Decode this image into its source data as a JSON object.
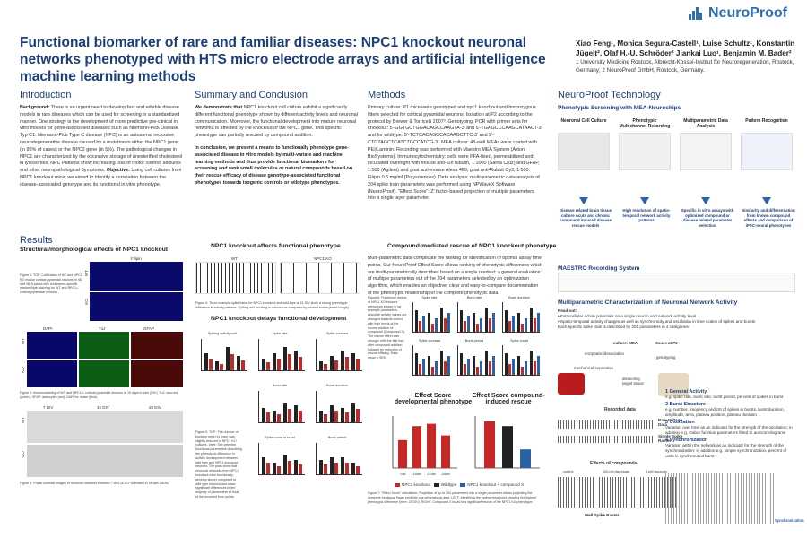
{
  "header": {
    "brand": "NeuroProof",
    "title": "Functional biomarker of rare and familiar diseases: NPC1 knockout neuronal networks phenotyped with HTS micro electrode arrays and artificial intelligence machine learning methods",
    "authors": "Xiao Feng¹, Monica Segura-Castell¹, Luise Schultz¹, Konstantin Jügelt², Olaf H.-U. Schröder² Jiankai Luo¹, Benjamin M. Bader²",
    "affiliations": "1 University Medicine Rostock, Albrecht-Kossel-Institut for Neuroregeneration, Rostock, Germany; 2 NeuroProof GmbH, Rostock, Germany."
  },
  "intro": {
    "heading": "Introduction",
    "bg_label": "Background:",
    "background": "There is an urgent need to develop fast and reliable disease models in rare diseases which can be used for screening in a standardized manner. One strategy is the development of more predictive pre-clinical in vitro models for gene-associated diseases such as Niemann-Pick Disease Typ C1. Niemann-Pick Type C disease (NPC) is an autosomal recessive neurodegenerative disease caused by a mutation in either the NPC1 gene (in 95% of cases) or the NPC2 gene (in 5%). The pathological changes in NPC1 are characterized by the excessive storage of unesterified cholesterol in lysosomes. NPC Patients show increasing loss of motor control, seizures and other neuropathological Symptoms.",
    "obj_label": "Objective:",
    "objective": "Using cell cultures from NPC1 knockout mice, we aimed to identify a correlation between the disease-associated genotype and its functional in vitro phenotype."
  },
  "summary": {
    "heading": "Summary and Conclusion",
    "p1_bold": "We demonstrate that",
    "p1": "NPC1 knockout cell culture exhibit a significantly different functional phenotype shown by different activity levels and neuronal communication. Moreover, the functional development into mature neuronal networks is affected by the knockout of the NPC1 gene. This specific phenotype can partially rescued by compound addition.",
    "p2": "In conclusion, we present a means to functionally phenotype gene-associated disease in vitro models by multi-variate and machine learning methods and thus provide functional biomarkers for screening and rank small molecules or natural compounds based on their rescue efficacy of disease genotype-associated functional phenotypes towards isogenic controls or wildtype phenotypes."
  },
  "methods": {
    "heading": "Methods",
    "text": "Primary culture: P1 mice were genotyped and npc1 knockout and homozygous litters selected for cortical pyramidal neurons. Isolation at P2 according to the protocol by Brewer & Torricelli 2007³. Genotyping: PCR with primer sets for knockout: 5'-GGTGCTGGACAGCCAAGTA-3' and 5'-TGAGCCCAAGCATAACT-3' and for wildtype: 5'-TCTCACAGCCACAAGCTTC-3' and 5'-CTGTAGCTCATCTGCCATCG-3'. MEA culture: 48-well MEAs were coated with PEI/Laminin. Recording was performed with Maestro MEA System (Axion BioSystems). Immunocytochemistry: cells were PFA-fixed, permeabilized and incubated overnight with mouse anti-ßIII tubulin, 1:1000 (Santa Cruz) and GFAP, 1:500 (Agilent) and goat anti-mouse Alexa 488, goat anti-Rabbit Cy3, 1:500. Filipin 0.5 mg/ml (Polysciences). Data analysis: multi-parametric data analysis of 204 spike train parameters was performed using NPWaveX Software (NeuroProof). \"Effect Score\": Z' factor-based projection of multiple parameters into a single layer parameter."
  },
  "tech": {
    "heading": "NeuroProof Technology",
    "subheading": "Phenotypic Screening with MEA-Neurochips",
    "steps": [
      {
        "label": "Neuronal Cell Culture",
        "result": "Disease related brain tissue culture Acute and chronic compound induced disease rescue models"
      },
      {
        "label": "Phenotypic Multichannel Recording",
        "result": "High resolution of spatio-temporal network activity patterns"
      },
      {
        "label": "Multiparametric Data Analysis",
        "result": "Specific in vitro assays with optimized compound or disease related parameter selection"
      },
      {
        "label": "Pattern Recognition",
        "result": "Similarity and differentiation from known compound effects and comparison of iPSC-neural phenotypes"
      }
    ],
    "maestro": "MAESTRO Recording System",
    "mea_heading": "Multiparametric Characterization of Neuronal Network Activity",
    "readout_label": "Read out:",
    "readout": [
      "Extracellular action potentials on a single neuron and network activity level",
      "Spatio-temporal activity changes as well as synchronicity and oscillation in time scales of spikes and bursts",
      "Each specific spike train is described by 200 parameters in 4 categories:"
    ],
    "categories": [
      {
        "name": "1 General Activity",
        "desc": "e.g. spike rate, burst rate, burst period, percent of spikes in burst"
      },
      {
        "name": "2 Burst Structure",
        "desc": "e.g. number, frequency and ISI of spikes in bursts, burst duration, amplitude, area, plateau position, plateau duration"
      },
      {
        "name": "3 Oscillation",
        "desc": "Variation over time as an indicator for the strength of the oscillation; in addition e.g. Gabor function parameters fitted to autocorrelograms"
      },
      {
        "name": "4 Synchronization",
        "desc": "Variation within the network as an indicator for the strength of the synchronization; in addition e.g. simple synchronization, percent of units in synchronized burst"
      }
    ],
    "diagram": {
      "culture": "culture: MEA",
      "mouse": "Mouse at P2",
      "dissection": "enzymatic dissociation",
      "mechanical": "mechanical separation",
      "genotyping": "genotyping",
      "tissue": "dissecting target tissue",
      "recorded": "Recorded data",
      "raw": "Raw Voltage Data",
      "spike": "Single Spike Raster",
      "effects": "Effects of compounds",
      "control": "control",
      "dose1": "100 nM diazepam",
      "dose2": "5 µM bicuculin",
      "raster": "Well Spike Raster",
      "sync": "Synchronization"
    }
  },
  "results": {
    "heading": "Results",
    "structural": "Structural/morphological effects of NPC1 knockout",
    "filipin": "Filipin",
    "wt": "WT",
    "ko": "KO",
    "dapi": "DAPI",
    "tuj": "TuJ",
    "gfap": "GFAP",
    "div_labels": [
      "7 DIV",
      "15 DIV",
      "28 DIV"
    ],
    "fig1": "Figure 1: TOP: Calibration of WT and NPC1 KO mouse cortical pyramidal neurons in 48-well MEA plates with cholesterol-specific marker filipin staining for WT and NPC1-/- cortical pyramidal neurons.",
    "fig2": "Figure 2: Immunostaining of WT and NPC1-/- cortical pyramidal neurons at 15 days in vitro (DIV). TuJ: neurons (green), GFAP: astrocytes (red), DAPI for nuclei (blue).",
    "fig3": "Figure 3: Phase contrast images of neuronal networks between 7 and 28 DIV cultivated in 48-well MEAs.",
    "functional_title": "NPC1 knockout affects functional phenotype",
    "fig4": "Figure 4: Three example spike trains for NPC1 knockout and wild-type at 21 DIV show a strong phenotypic difference in activity patterns. Spiking and bursting is reduced as compared by several bursts (insert image).",
    "delays_title": "NPC1 knockout delays functional development",
    "panels": [
      "Spiking activity/unit",
      "Spike rate",
      "Spike contrast",
      "Burst rate",
      "Burst duration",
      "Spike count in burst",
      "Burst period"
    ],
    "fig5": "Figure 5: TOP: The number of bursting units (x1 max) was slightly reduced in NPC1 KO cultures. Inset: Sex selected functional parameters describing the phenotypic difference in activity development between wild type and NPC1 knockout neurons. The plots show that neuronal networks from NPC1 knockout mice functionally develop slower compared to wild type neurons and show significant differences in the majority of parameters at most of the recorded time points.",
    "rescue_title": "Compound-mediated rescue of NPC1 knockout phenotype",
    "rescue_text": "Multi-parametric data complicate the ranking for identification of optimal assay time points. Our NeuroProof Effect Score allows ranking of phenotypic differences which are multi-parametrically described based on a single readout: a general evaluation of multiple parameters out of the 204 parameters selected by an optimization algorithm, which enables an objective, clear and easy-to-compare documentation of the phenotypic relationship of the complete phenotypic data.",
    "fig6": "Figure 6: Functional rescue of NPC1 KO induced phenotype shown in six example parameters. Absolute activity values are changed towards control with high levels of the source addition of compound (Compound X). The rescue effect was stronger with the first four after compound addition followed by reduction of rescue efficacy. Data: mean ± SEM.",
    "rescue_panels": [
      "Spike rate",
      "Burst rate",
      "Burst duration",
      "Spike contrast",
      "Burst period",
      "Spike count"
    ],
    "effect_dev": "Effect Score developmental phenotype",
    "effect_rescue": "Effect Score compound-induced rescue",
    "legend": [
      "NPC1 knockout",
      "Wildtype",
      "NPC1 knockout + compound X"
    ],
    "fig7": "Figure 7: \"Effect Score\" calculation: Projection of up to 204 parameters into a single parameter allows projecting the complete functional finger print into one-dimensional data. LEFT: Identifying the optimal time point showing the highest phenotypic difference (here: 21 DIV). RIGHT: Compound X leads to a significant rescue of the NPC1 KO phenotype.",
    "days": [
      "7div",
      "14div",
      "21div",
      "28div"
    ],
    "dev_scores": [
      0.6,
      0.9,
      0.95,
      0.7
    ],
    "rescue_scores": [
      1.0,
      0.9,
      0.4
    ],
    "wt_sample": "WT",
    "ko_sample": "NPC1 KO"
  },
  "colors": {
    "accent": "#1c3f78",
    "ko": "#c62828",
    "wt": "#222222",
    "rescue": "#2a62a8"
  }
}
